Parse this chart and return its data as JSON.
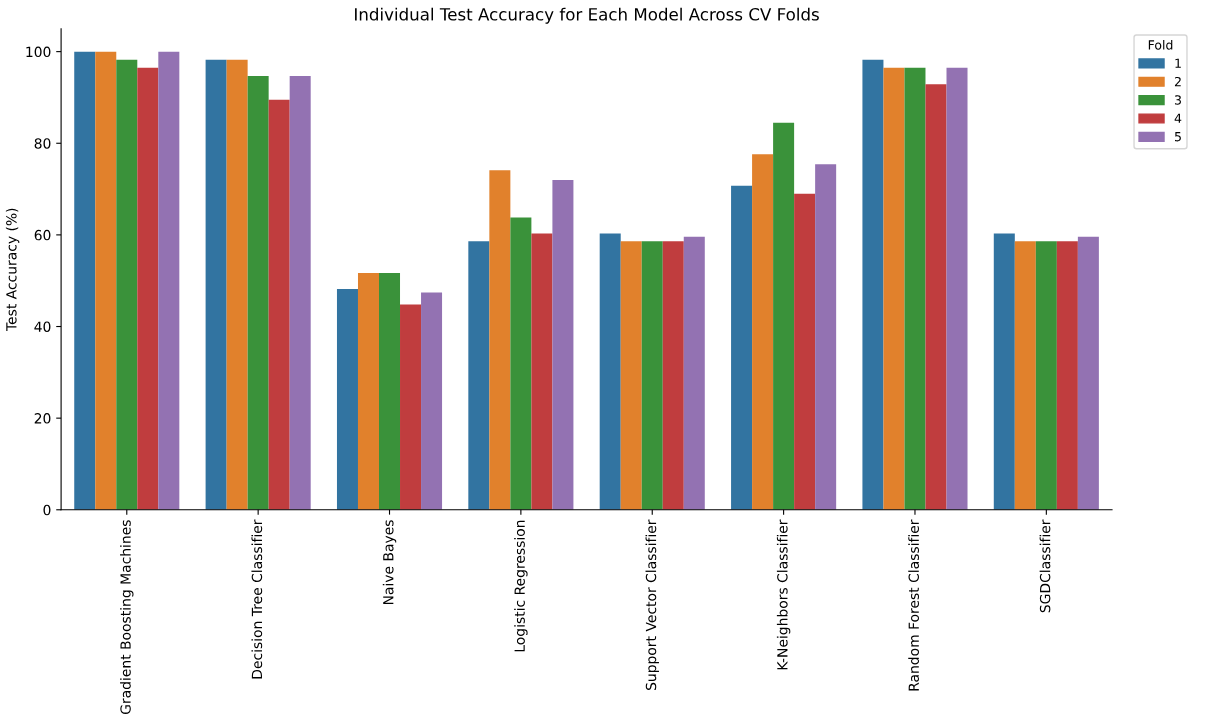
{
  "chart_data": {
    "type": "bar",
    "title": "Individual Test Accuracy for Each Model Across CV Folds",
    "ylabel": "Test Accuracy (%)",
    "categories": [
      "Gradient Boosting Machines",
      "Decision Tree Classifier",
      "Naive Bayes",
      "Logistic Regression",
      "Support Vector Classifier",
      "K-Neighbors Classifier",
      "Random Forest Classifier",
      "SGDClassifier"
    ],
    "series": [
      {
        "name": "1",
        "color": "#3274a1",
        "values": [
          100,
          98.2,
          48.2,
          58.6,
          60.3,
          70.7,
          98.2,
          60.3
        ]
      },
      {
        "name": "2",
        "color": "#e1812c",
        "values": [
          100,
          98.2,
          51.7,
          74.1,
          58.6,
          77.6,
          96.5,
          58.6
        ]
      },
      {
        "name": "3",
        "color": "#3a923a",
        "values": [
          98.2,
          94.7,
          51.7,
          63.8,
          58.6,
          84.5,
          96.5,
          58.6
        ]
      },
      {
        "name": "4",
        "color": "#c03d3e",
        "values": [
          96.5,
          89.5,
          44.8,
          60.3,
          58.6,
          69.0,
          92.9,
          58.6
        ]
      },
      {
        "name": "5",
        "color": "#9372b2",
        "values": [
          100,
          94.7,
          47.4,
          72.0,
          59.6,
          75.4,
          96.5,
          59.6
        ]
      }
    ],
    "ylim": [
      0,
      105
    ],
    "yticks": [
      0,
      20,
      40,
      60,
      80,
      100
    ],
    "grid": false,
    "legend": "top right",
    "legend_title": "Fold"
  }
}
